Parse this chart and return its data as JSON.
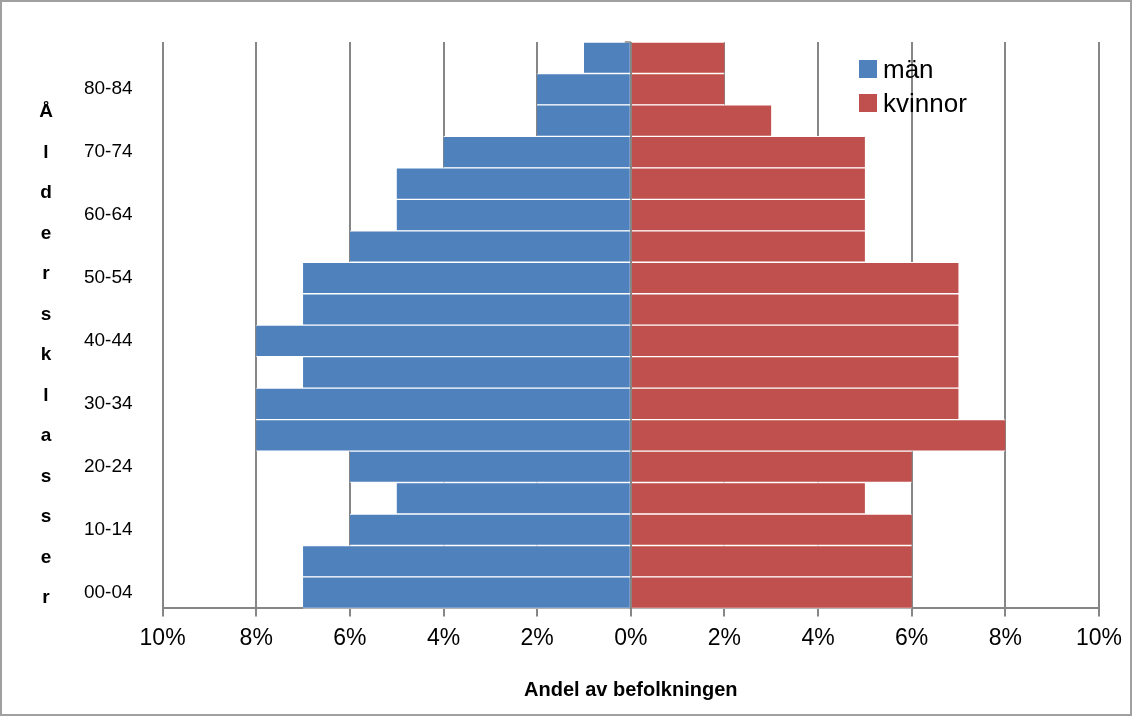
{
  "chart_data": {
    "type": "bar",
    "orientation": "horizontal",
    "stacked": true,
    "xlabel": "Andel av befolkningen",
    "ylabel": "Åldersklasser",
    "categories": [
      null,
      "80-84",
      null,
      "70-74",
      null,
      "60-64",
      null,
      "50-54",
      null,
      "40-44",
      null,
      "30-34",
      null,
      "20-24",
      null,
      "10-14",
      null,
      "00-04"
    ],
    "series": [
      {
        "name": "män",
        "color": "#4f81bd",
        "values": [
          -1,
          -2,
          -2,
          -4,
          -5,
          -5,
          -6,
          -7,
          -7,
          -8,
          -7,
          -8,
          -8,
          -6,
          -5,
          -6,
          -7,
          -7
        ]
      },
      {
        "name": "kvinnor",
        "color": "#c0504d",
        "values": [
          2,
          2,
          3,
          5,
          5,
          5,
          5,
          7,
          7,
          7,
          7,
          7,
          8,
          6,
          5,
          6,
          6,
          6
        ]
      }
    ],
    "xlim": [
      -10,
      10
    ],
    "xticks": [
      {
        "value": -10,
        "label": "10%"
      },
      {
        "value": -8,
        "label": "8%"
      },
      {
        "value": -6,
        "label": "6%"
      },
      {
        "value": -4,
        "label": "4%"
      },
      {
        "value": -2,
        "label": "2%"
      },
      {
        "value": 0,
        "label": "0%"
      },
      {
        "value": 2,
        "label": "2%"
      },
      {
        "value": 4,
        "label": "4%"
      },
      {
        "value": 6,
        "label": "6%"
      },
      {
        "value": 8,
        "label": "8%"
      },
      {
        "value": 10,
        "label": "10%"
      }
    ],
    "grid": "x",
    "legend": "top right"
  }
}
